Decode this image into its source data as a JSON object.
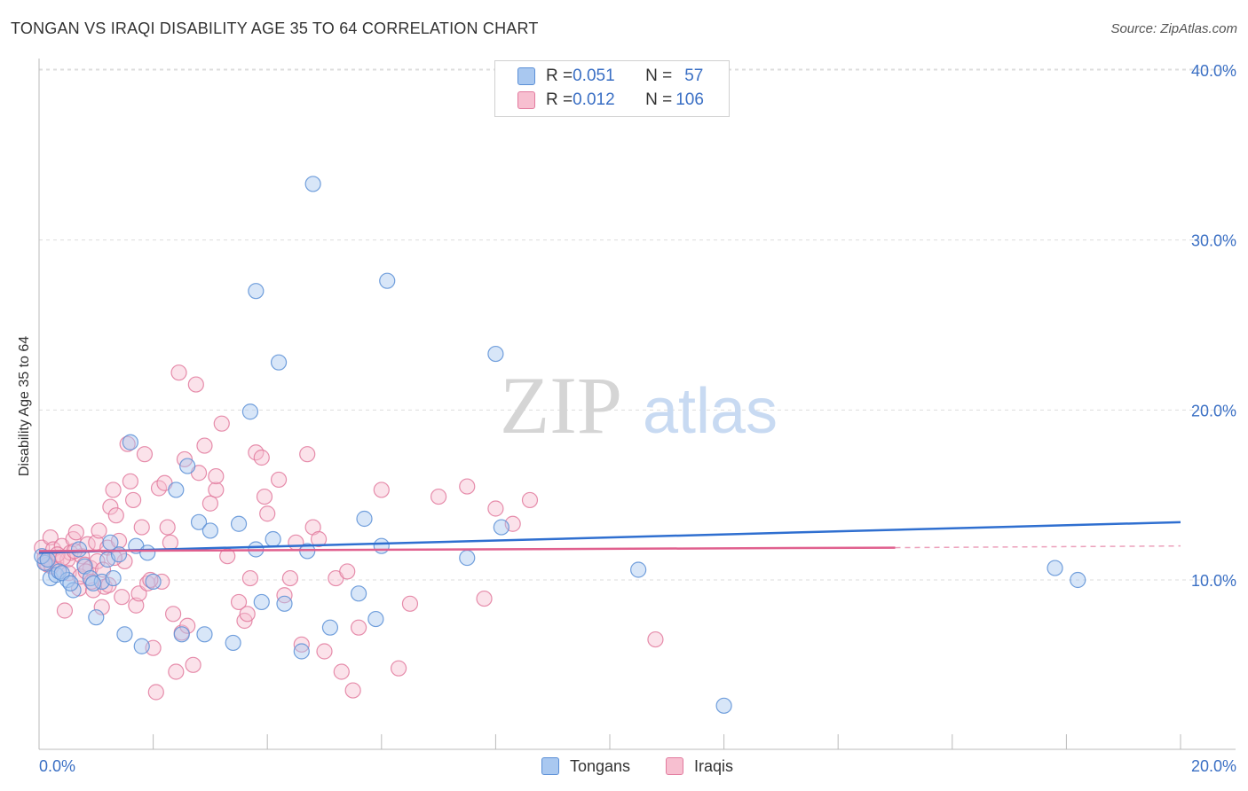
{
  "title": "TONGAN VS IRAQI DISABILITY AGE 35 TO 64 CORRELATION CHART",
  "source": "Source: ZipAtlas.com",
  "watermark": {
    "zip": "ZIP",
    "atlas": "atlas"
  },
  "legend_top": {
    "rows": [
      {
        "r_label": "R = ",
        "r_value": "0.051",
        "n_label": "N = ",
        "n_value": "57",
        "color": "#a9c8f0",
        "border": "#5b8fd6"
      },
      {
        "r_label": "R = ",
        "r_value": "0.012",
        "n_label": "N = ",
        "n_value": "106",
        "color": "#f7bfd0",
        "border": "#e27a9e"
      }
    ]
  },
  "legend_bottom": [
    {
      "label": "Tongans",
      "color": "#a9c8f0",
      "border": "#5b8fd6"
    },
    {
      "label": "Iraqis",
      "color": "#f7bfd0",
      "border": "#e27a9e"
    }
  ],
  "chart_data": {
    "type": "scatter",
    "title": "TONGAN VS IRAQI DISABILITY AGE 35 TO 64 CORRELATION CHART",
    "xlabel": "",
    "ylabel": "Disability Age 35 to 64",
    "xlim": [
      0,
      20
    ],
    "ylim": [
      0,
      41
    ],
    "x_tick_labels": [
      "0.0%",
      "20.0%"
    ],
    "y_ticks": [
      10,
      20,
      30,
      40
    ],
    "y_tick_labels": [
      "10.0%",
      "20.0%",
      "30.0%",
      "40.0%"
    ],
    "grid": true,
    "series": [
      {
        "name": "Tongans",
        "color": "#5b8fd6",
        "fill": "#a9c8f0",
        "trend": {
          "x": [
            0,
            20
          ],
          "y": [
            11.6,
            13.4
          ],
          "color": "#2f6fd0"
        },
        "points": [
          [
            0.1,
            11.0
          ],
          [
            0.2,
            10.1
          ],
          [
            0.3,
            10.3
          ],
          [
            0.35,
            10.5
          ],
          [
            0.5,
            10.0
          ],
          [
            0.6,
            9.4
          ],
          [
            0.7,
            11.8
          ],
          [
            0.8,
            10.8
          ],
          [
            0.9,
            10.1
          ],
          [
            1.0,
            7.8
          ],
          [
            1.1,
            9.9
          ],
          [
            1.2,
            11.2
          ],
          [
            1.3,
            10.1
          ],
          [
            1.4,
            11.5
          ],
          [
            1.5,
            6.8
          ],
          [
            1.6,
            18.1
          ],
          [
            1.7,
            12.0
          ],
          [
            1.8,
            6.1
          ],
          [
            1.9,
            11.6
          ],
          [
            2.0,
            9.9
          ],
          [
            2.5,
            6.8
          ],
          [
            2.8,
            13.4
          ],
          [
            3.0,
            12.9
          ],
          [
            2.6,
            16.7
          ],
          [
            2.4,
            15.3
          ],
          [
            3.5,
            13.3
          ],
          [
            3.8,
            11.8
          ],
          [
            3.4,
            6.3
          ],
          [
            3.7,
            19.9
          ],
          [
            3.8,
            27.0
          ],
          [
            3.9,
            8.7
          ],
          [
            4.1,
            12.4
          ],
          [
            4.2,
            22.8
          ],
          [
            4.3,
            8.6
          ],
          [
            4.6,
            5.8
          ],
          [
            4.7,
            11.7
          ],
          [
            4.8,
            33.3
          ],
          [
            5.1,
            7.2
          ],
          [
            5.6,
            9.2
          ],
          [
            5.7,
            13.6
          ],
          [
            5.9,
            7.7
          ],
          [
            6.0,
            12.0
          ],
          [
            6.1,
            27.6
          ],
          [
            7.5,
            11.3
          ],
          [
            8.0,
            23.3
          ],
          [
            8.1,
            13.1
          ],
          [
            10.5,
            10.6
          ],
          [
            12.0,
            2.6
          ],
          [
            17.8,
            10.7
          ],
          [
            18.2,
            10.0
          ],
          [
            0.05,
            11.4
          ],
          [
            0.15,
            11.2
          ],
          [
            0.4,
            10.4
          ],
          [
            0.55,
            9.8
          ],
          [
            1.25,
            12.2
          ],
          [
            0.95,
            9.8
          ],
          [
            2.9,
            6.8
          ]
        ]
      },
      {
        "name": "Iraqis",
        "color": "#e27a9e",
        "fill": "#f7bfd0",
        "trend": {
          "x": [
            0,
            15
          ],
          "y": [
            11.7,
            11.9
          ],
          "color": "#e0608e",
          "dashed_extension": {
            "x": [
              15,
              20
            ],
            "y": [
              11.9,
              12.0
            ]
          }
        },
        "points": [
          [
            0.05,
            11.9
          ],
          [
            0.1,
            11.3
          ],
          [
            0.15,
            10.9
          ],
          [
            0.2,
            12.5
          ],
          [
            0.25,
            11.8
          ],
          [
            0.3,
            11.1
          ],
          [
            0.35,
            10.6
          ],
          [
            0.4,
            12.0
          ],
          [
            0.45,
            8.2
          ],
          [
            0.5,
            11.2
          ],
          [
            0.55,
            11.6
          ],
          [
            0.6,
            12.4
          ],
          [
            0.65,
            12.8
          ],
          [
            0.7,
            9.5
          ],
          [
            0.75,
            11.4
          ],
          [
            0.8,
            10.9
          ],
          [
            0.85,
            12.1
          ],
          [
            0.9,
            10.7
          ],
          [
            0.95,
            9.4
          ],
          [
            1.0,
            12.2
          ],
          [
            1.05,
            12.9
          ],
          [
            1.1,
            8.4
          ],
          [
            1.15,
            9.6
          ],
          [
            1.2,
            11.9
          ],
          [
            1.25,
            14.3
          ],
          [
            1.3,
            15.3
          ],
          [
            1.35,
            13.8
          ],
          [
            1.4,
            12.3
          ],
          [
            1.45,
            9.0
          ],
          [
            1.5,
            11.1
          ],
          [
            1.55,
            18.0
          ],
          [
            1.6,
            15.8
          ],
          [
            1.65,
            14.7
          ],
          [
            1.7,
            8.5
          ],
          [
            1.75,
            9.2
          ],
          [
            1.8,
            13.1
          ],
          [
            1.85,
            17.4
          ],
          [
            1.9,
            9.8
          ],
          [
            2.0,
            6.0
          ],
          [
            2.05,
            3.4
          ],
          [
            2.1,
            15.4
          ],
          [
            2.2,
            15.7
          ],
          [
            2.25,
            13.1
          ],
          [
            2.3,
            12.2
          ],
          [
            2.35,
            8.0
          ],
          [
            2.4,
            4.6
          ],
          [
            2.45,
            22.2
          ],
          [
            2.5,
            6.9
          ],
          [
            2.55,
            17.1
          ],
          [
            2.6,
            7.3
          ],
          [
            2.7,
            5.0
          ],
          [
            2.75,
            21.5
          ],
          [
            2.8,
            16.3
          ],
          [
            2.9,
            17.9
          ],
          [
            3.0,
            14.5
          ],
          [
            3.1,
            15.3
          ],
          [
            3.2,
            19.2
          ],
          [
            3.3,
            11.4
          ],
          [
            3.5,
            8.7
          ],
          [
            3.6,
            7.6
          ],
          [
            3.65,
            8.0
          ],
          [
            3.7,
            10.1
          ],
          [
            3.8,
            17.5
          ],
          [
            3.9,
            17.2
          ],
          [
            3.95,
            14.9
          ],
          [
            4.0,
            13.9
          ],
          [
            4.2,
            15.9
          ],
          [
            4.3,
            9.1
          ],
          [
            4.4,
            10.1
          ],
          [
            4.5,
            12.2
          ],
          [
            4.7,
            17.4
          ],
          [
            4.8,
            13.1
          ],
          [
            4.9,
            12.4
          ],
          [
            5.0,
            5.8
          ],
          [
            5.2,
            10.1
          ],
          [
            5.3,
            4.6
          ],
          [
            5.5,
            3.5
          ],
          [
            5.6,
            7.2
          ],
          [
            6.0,
            15.3
          ],
          [
            6.3,
            4.8
          ],
          [
            6.5,
            8.6
          ],
          [
            7.0,
            14.9
          ],
          [
            7.5,
            15.5
          ],
          [
            7.8,
            8.9
          ],
          [
            8.0,
            14.2
          ],
          [
            8.3,
            13.3
          ],
          [
            8.6,
            14.7
          ],
          [
            10.8,
            6.5
          ],
          [
            0.12,
            11.0
          ],
          [
            0.22,
            10.8
          ],
          [
            0.32,
            11.5
          ],
          [
            0.42,
            11.3
          ],
          [
            0.52,
            10.4
          ],
          [
            0.62,
            11.7
          ],
          [
            0.72,
            10.2
          ],
          [
            0.82,
            10.5
          ],
          [
            0.92,
            9.9
          ],
          [
            1.02,
            11.1
          ],
          [
            1.12,
            10.6
          ],
          [
            1.22,
            9.7
          ],
          [
            1.32,
            11.3
          ],
          [
            2.15,
            9.9
          ],
          [
            1.95,
            10.0
          ],
          [
            3.1,
            16.1
          ],
          [
            4.6,
            6.2
          ],
          [
            5.4,
            10.5
          ]
        ]
      }
    ]
  }
}
